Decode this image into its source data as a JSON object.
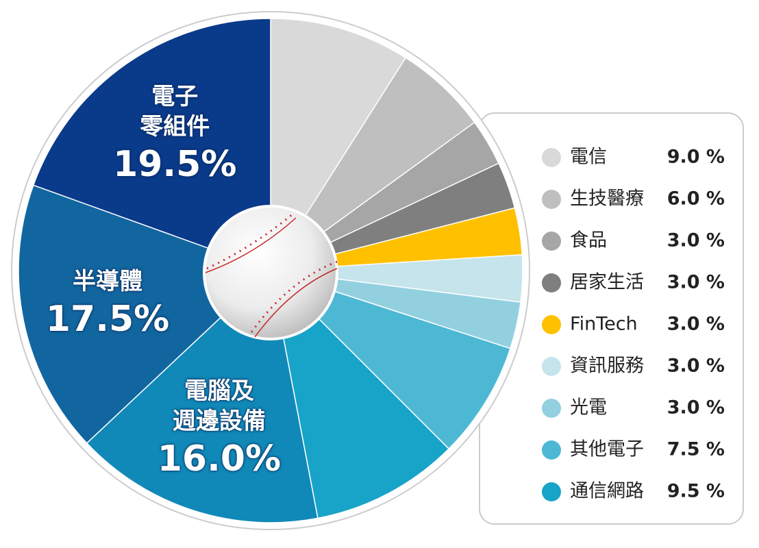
{
  "chart_data": {
    "type": "pie",
    "categories": [
      "電信",
      "生技醫療",
      "食品",
      "居家生活",
      "FinTech",
      "資訊服務",
      "光電",
      "其他電子",
      "通信網路",
      "電腦及\n週邊設備",
      "半導體",
      "電子\n零組件"
    ],
    "values": [
      9.0,
      6.0,
      3.0,
      3.0,
      3.0,
      3.0,
      3.0,
      7.5,
      9.5,
      16.0,
      17.5,
      19.5
    ],
    "value_labels": [
      "9.0 %",
      "6.0 %",
      "3.0 %",
      "3.0 %",
      "3.0 %",
      "3.0 %",
      "3.0 %",
      "7.5 %",
      "9.5 %",
      "16.0%",
      "17.5%",
      "19.5%"
    ],
    "colors": [
      "#d9d9d9",
      "#bfbfbf",
      "#a6a6a6",
      "#7f7f7f",
      "#ffc000",
      "#c5e4ec",
      "#92d0e0",
      "#4db8d4",
      "#18a3c8",
      "#1089b8",
      "#1266a0",
      "#0a3a8a"
    ]
  }
}
